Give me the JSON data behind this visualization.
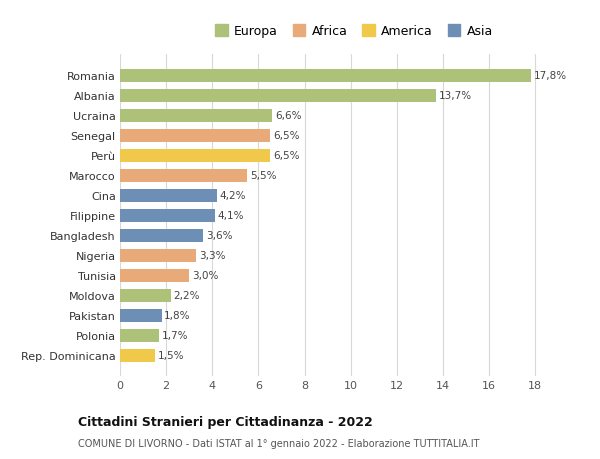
{
  "countries": [
    "Romania",
    "Albania",
    "Ucraina",
    "Senegal",
    "Perù",
    "Marocco",
    "Cina",
    "Filippine",
    "Bangladesh",
    "Nigeria",
    "Tunisia",
    "Moldova",
    "Pakistan",
    "Polonia",
    "Rep. Dominicana"
  ],
  "values": [
    17.8,
    13.7,
    6.6,
    6.5,
    6.5,
    5.5,
    4.2,
    4.1,
    3.6,
    3.3,
    3.0,
    2.2,
    1.8,
    1.7,
    1.5
  ],
  "labels": [
    "17,8%",
    "13,7%",
    "6,6%",
    "6,5%",
    "6,5%",
    "5,5%",
    "4,2%",
    "4,1%",
    "3,6%",
    "3,3%",
    "3,0%",
    "2,2%",
    "1,8%",
    "1,7%",
    "1,5%"
  ],
  "colors": [
    "#adc178",
    "#adc178",
    "#adc178",
    "#e8aa78",
    "#f0c84a",
    "#e8aa78",
    "#6e8fb5",
    "#6e8fb5",
    "#6e8fb5",
    "#e8aa78",
    "#e8aa78",
    "#adc178",
    "#6e8fb5",
    "#adc178",
    "#f0c84a"
  ],
  "legend_labels": [
    "Europa",
    "Africa",
    "America",
    "Asia"
  ],
  "legend_colors": [
    "#adc178",
    "#e8aa78",
    "#f0c84a",
    "#6e8fb5"
  ],
  "xlim": [
    0,
    19.5
  ],
  "xticks": [
    0,
    2,
    4,
    6,
    8,
    10,
    12,
    14,
    16,
    18
  ],
  "title": "Cittadini Stranieri per Cittadinanza - 2022",
  "subtitle": "COMUNE DI LIVORNO - Dati ISTAT al 1° gennaio 2022 - Elaborazione TUTTITALIA.IT",
  "bg_color": "#ffffff",
  "grid_color": "#d8d8d8",
  "bar_height": 0.65
}
